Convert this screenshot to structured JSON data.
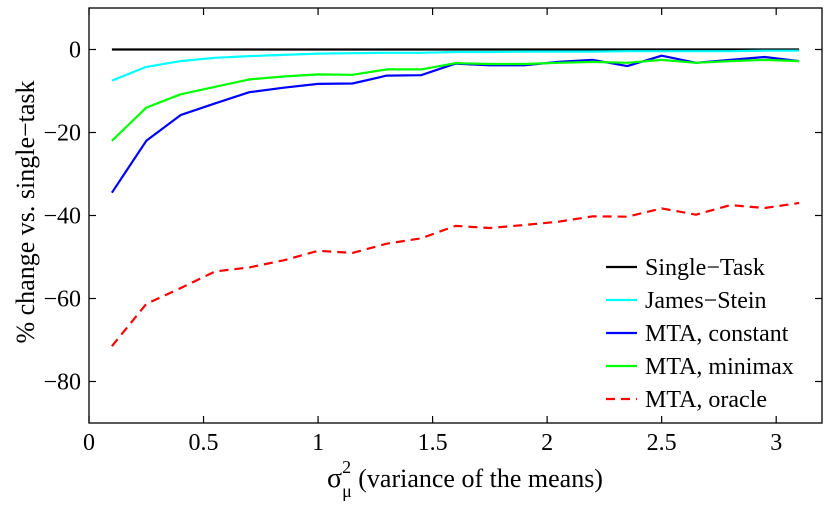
{
  "chart_data": {
    "type": "line",
    "title": "",
    "xlabel": {
      "symbol": "σ",
      "superscript": "2",
      "subscript": "μ",
      "text": " (variance of the means)"
    },
    "ylabel": "% change vs. single−task",
    "xlim": [
      0,
      3.2
    ],
    "ylim": [
      -90,
      10
    ],
    "xticks": [
      0,
      0.5,
      1,
      1.5,
      2,
      2.5,
      3
    ],
    "xtick_labels": [
      "0",
      "0.5",
      "1",
      "1.5",
      "2",
      "2.5",
      "3"
    ],
    "yticks": [
      0,
      -20,
      -40,
      -60,
      -80
    ],
    "ytick_labels": [
      "0",
      "−20",
      "−40",
      "−60",
      "−80"
    ],
    "grid": false,
    "legend_position": "lower-right",
    "x": [
      0.1,
      0.25,
      0.4,
      0.55,
      0.7,
      0.85,
      1.0,
      1.15,
      1.3,
      1.45,
      1.6,
      1.75,
      1.9,
      2.05,
      2.2,
      2.35,
      2.5,
      2.65,
      2.8,
      2.95,
      3.1
    ],
    "series": [
      {
        "name": "Single−Task",
        "color": "#000000",
        "dash": "solid",
        "values": [
          0,
          0,
          0,
          0,
          0,
          0,
          0,
          0,
          0,
          0,
          0,
          0,
          0,
          0,
          0,
          0,
          0,
          0,
          0,
          0,
          0
        ]
      },
      {
        "name": "James−Stein",
        "color": "#00ffff",
        "dash": "solid",
        "values": [
          -7.5,
          -4.2,
          -2.8,
          -2.0,
          -1.6,
          -1.3,
          -1.0,
          -0.9,
          -0.8,
          -0.8,
          -0.6,
          -0.6,
          -0.5,
          -0.5,
          -0.5,
          -0.4,
          -0.4,
          -0.4,
          -0.4,
          -0.3,
          -0.3
        ]
      },
      {
        "name": "MTA, constant",
        "color": "#0000ff",
        "dash": "solid",
        "values": [
          -34.5,
          -22.0,
          -15.8,
          -13.0,
          -10.3,
          -9.2,
          -8.3,
          -8.2,
          -6.3,
          -6.2,
          -3.4,
          -3.8,
          -3.8,
          -3.0,
          -2.5,
          -4.0,
          -1.5,
          -3.2,
          -2.5,
          -1.8,
          -2.8
        ]
      },
      {
        "name": "MTA, minimax",
        "color": "#00ff00",
        "dash": "solid",
        "values": [
          -22.0,
          -14.0,
          -10.8,
          -9.0,
          -7.2,
          -6.5,
          -6.0,
          -6.1,
          -4.8,
          -4.8,
          -3.3,
          -3.5,
          -3.5,
          -3.2,
          -3.0,
          -3.2,
          -2.5,
          -3.2,
          -2.8,
          -2.5,
          -2.8
        ]
      },
      {
        "name": "MTA, oracle",
        "color": "#ff0000",
        "dash": "dashed",
        "values": [
          -71.5,
          -61.3,
          -57.5,
          -53.5,
          -52.5,
          -50.8,
          -48.5,
          -49.0,
          -46.8,
          -45.5,
          -42.5,
          -43.0,
          -42.3,
          -41.5,
          -40.2,
          -40.3,
          -38.3,
          -39.8,
          -37.5,
          -38.2,
          -37.0
        ]
      }
    ]
  }
}
